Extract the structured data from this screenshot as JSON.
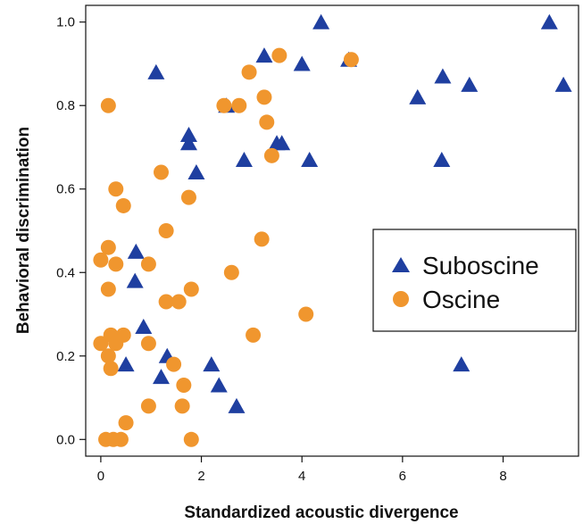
{
  "chart_data": {
    "type": "scatter",
    "xlabel": "Standardized acoustic divergence",
    "ylabel": "Behavioral discrimination",
    "xlim": [
      -0.3,
      9.5
    ],
    "ylim": [
      -0.04,
      1.04
    ],
    "xticks": [
      0,
      2,
      4,
      6,
      8
    ],
    "yticks": [
      0.0,
      0.2,
      0.4,
      0.6,
      0.8,
      1.0
    ],
    "xtick_labels": [
      "0",
      "2",
      "4",
      "6",
      "8"
    ],
    "ytick_labels": [
      "0.0",
      "0.2",
      "0.4",
      "0.6",
      "0.8",
      "1.0"
    ],
    "grid": false,
    "legend_position": "right-middle",
    "series": [
      {
        "name": "Suboscine",
        "marker": "triangle",
        "color": "#1f3fa0",
        "points": [
          [
            4.38,
            1.0
          ],
          [
            8.92,
            1.0
          ],
          [
            3.25,
            0.92
          ],
          [
            4.0,
            0.9
          ],
          [
            4.93,
            0.91
          ],
          [
            1.1,
            0.88
          ],
          [
            6.8,
            0.87
          ],
          [
            7.33,
            0.85
          ],
          [
            9.2,
            0.85
          ],
          [
            6.3,
            0.82
          ],
          [
            2.5,
            0.8
          ],
          [
            1.75,
            0.73
          ],
          [
            1.75,
            0.71
          ],
          [
            3.5,
            0.71
          ],
          [
            3.6,
            0.71
          ],
          [
            2.85,
            0.67
          ],
          [
            4.15,
            0.67
          ],
          [
            6.78,
            0.67
          ],
          [
            1.9,
            0.64
          ],
          [
            0.7,
            0.45
          ],
          [
            0.68,
            0.38
          ],
          [
            0.85,
            0.27
          ],
          [
            1.32,
            0.2
          ],
          [
            0.5,
            0.18
          ],
          [
            2.2,
            0.18
          ],
          [
            7.17,
            0.18
          ],
          [
            1.2,
            0.15
          ],
          [
            2.35,
            0.13
          ],
          [
            2.7,
            0.08
          ]
        ]
      },
      {
        "name": "Oscine",
        "marker": "circle",
        "color": "#f0962e",
        "points": [
          [
            3.55,
            0.92
          ],
          [
            4.98,
            0.91
          ],
          [
            2.95,
            0.88
          ],
          [
            3.25,
            0.82
          ],
          [
            0.15,
            0.8
          ],
          [
            2.45,
            0.8
          ],
          [
            2.75,
            0.8
          ],
          [
            3.3,
            0.76
          ],
          [
            3.4,
            0.68
          ],
          [
            1.2,
            0.64
          ],
          [
            0.3,
            0.6
          ],
          [
            0.45,
            0.56
          ],
          [
            1.75,
            0.58
          ],
          [
            1.3,
            0.5
          ],
          [
            3.2,
            0.48
          ],
          [
            0.15,
            0.46
          ],
          [
            0.0,
            0.43
          ],
          [
            0.3,
            0.42
          ],
          [
            0.95,
            0.42
          ],
          [
            2.6,
            0.4
          ],
          [
            0.15,
            0.36
          ],
          [
            1.8,
            0.36
          ],
          [
            1.3,
            0.33
          ],
          [
            1.55,
            0.33
          ],
          [
            4.08,
            0.3
          ],
          [
            3.03,
            0.25
          ],
          [
            0.2,
            0.25
          ],
          [
            0.45,
            0.25
          ],
          [
            0.0,
            0.23
          ],
          [
            0.3,
            0.23
          ],
          [
            0.95,
            0.23
          ],
          [
            0.15,
            0.2
          ],
          [
            0.2,
            0.17
          ],
          [
            1.45,
            0.18
          ],
          [
            1.65,
            0.13
          ],
          [
            0.95,
            0.08
          ],
          [
            1.62,
            0.08
          ],
          [
            0.5,
            0.04
          ],
          [
            0.1,
            0.0
          ],
          [
            0.25,
            0.0
          ],
          [
            0.4,
            0.0
          ],
          [
            1.8,
            0.0
          ]
        ]
      }
    ]
  }
}
